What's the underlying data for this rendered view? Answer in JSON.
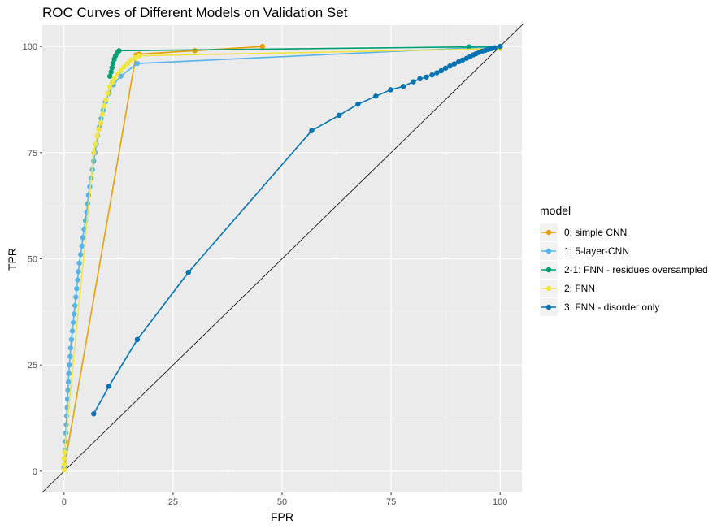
{
  "chart_data": {
    "type": "line",
    "title": "ROC Curves of Different Models on Validation Set",
    "xlabel": "FPR",
    "ylabel": "TPR",
    "xlim": [
      -5,
      105
    ],
    "ylim": [
      -5,
      105
    ],
    "x_ticks": [
      0,
      25,
      50,
      75,
      100
    ],
    "y_ticks": [
      0,
      25,
      50,
      75,
      100
    ],
    "grid": true,
    "reference_line": {
      "from": [
        -5,
        -5
      ],
      "to": [
        105,
        105
      ],
      "color": "#000000"
    },
    "legend": {
      "title": "model",
      "placement": "right"
    },
    "series": [
      {
        "name": "0: simple CNN",
        "color": "#E69F00",
        "points": [
          [
            0,
            0.5
          ],
          [
            16.5,
            98
          ],
          [
            17.2,
            98.2
          ],
          [
            30,
            99
          ],
          [
            45.5,
            100
          ]
        ]
      },
      {
        "name": "1: 5-layer-CNN",
        "color": "#56B4E9",
        "points": [
          [
            0,
            1
          ],
          [
            0.1,
            3
          ],
          [
            0.2,
            5
          ],
          [
            0.3,
            7
          ],
          [
            0.4,
            9
          ],
          [
            0.5,
            11
          ],
          [
            0.6,
            13
          ],
          [
            0.7,
            15
          ],
          [
            0.8,
            17
          ],
          [
            0.9,
            19
          ],
          [
            1.0,
            21
          ],
          [
            1.1,
            23
          ],
          [
            1.2,
            25
          ],
          [
            1.4,
            27
          ],
          [
            1.5,
            29
          ],
          [
            1.7,
            31
          ],
          [
            1.9,
            33
          ],
          [
            2.1,
            35
          ],
          [
            2.3,
            37
          ],
          [
            2.5,
            39
          ],
          [
            2.7,
            41
          ],
          [
            2.9,
            43
          ],
          [
            3.1,
            45
          ],
          [
            3.3,
            47
          ],
          [
            3.5,
            49
          ],
          [
            3.8,
            51
          ],
          [
            4.1,
            53
          ],
          [
            4.3,
            55
          ],
          [
            4.6,
            57
          ],
          [
            4.9,
            59
          ],
          [
            5.2,
            61
          ],
          [
            5.4,
            63
          ],
          [
            5.6,
            65
          ],
          [
            5.9,
            67
          ],
          [
            6.2,
            69
          ],
          [
            6.5,
            71
          ],
          [
            6.8,
            73
          ],
          [
            7.1,
            75
          ],
          [
            7.4,
            77
          ],
          [
            7.7,
            79
          ],
          [
            8.1,
            81
          ],
          [
            8.5,
            83
          ],
          [
            9.0,
            85
          ],
          [
            9.5,
            87
          ],
          [
            10.3,
            89
          ],
          [
            11.3,
            91
          ],
          [
            13.0,
            93
          ],
          [
            16.8,
            96
          ],
          [
            100,
            100
          ]
        ]
      },
      {
        "name": "2-1: FNN - residues oversampled",
        "color": "#009E73",
        "points": [
          [
            10.5,
            93
          ],
          [
            10.8,
            94
          ],
          [
            11.0,
            95
          ],
          [
            11.2,
            96
          ],
          [
            11.5,
            97
          ],
          [
            11.8,
            97.8
          ],
          [
            12.2,
            98.5
          ],
          [
            12.6,
            99
          ],
          [
            92.9,
            99.9
          ],
          [
            100,
            100
          ]
        ]
      },
      {
        "name": "2: FNN",
        "color": "#F0E442",
        "points": [
          [
            0,
            0.3
          ],
          [
            0,
            1.5
          ],
          [
            0,
            3
          ],
          [
            0.1,
            4.5
          ],
          [
            6.8,
            75
          ],
          [
            7.2,
            77
          ],
          [
            7.6,
            79
          ],
          [
            8.0,
            80.5
          ],
          [
            8.4,
            82
          ],
          [
            8.8,
            84
          ],
          [
            9.2,
            86
          ],
          [
            9.6,
            87.5
          ],
          [
            10.0,
            89
          ],
          [
            10.5,
            90.5
          ],
          [
            11.0,
            91.5
          ],
          [
            11.5,
            92.5
          ],
          [
            12.2,
            93.5
          ],
          [
            13.0,
            94.3
          ],
          [
            13.8,
            95.2
          ],
          [
            14.6,
            96
          ],
          [
            15.4,
            96.8
          ],
          [
            16.3,
            97.4
          ],
          [
            17.2,
            97.8
          ],
          [
            100,
            99.5
          ]
        ]
      },
      {
        "name": "3: FNN - disorder only",
        "color": "#0072B2",
        "points": [
          [
            6.8,
            13.5
          ],
          [
            10.3,
            20
          ],
          [
            16.8,
            31
          ],
          [
            28.5,
            46.8
          ],
          [
            56.8,
            80.2
          ],
          [
            63.1,
            83.8
          ],
          [
            67.4,
            86.4
          ],
          [
            71.5,
            88.3
          ],
          [
            74.9,
            89.8
          ],
          [
            77.8,
            90.6
          ],
          [
            80.1,
            91.7
          ],
          [
            81.6,
            92.4
          ],
          [
            83.1,
            92.8
          ],
          [
            84.4,
            93.3
          ],
          [
            85.5,
            93.8
          ],
          [
            86.5,
            94.3
          ],
          [
            87.5,
            94.9
          ],
          [
            88.5,
            95.4
          ],
          [
            89.5,
            95.9
          ],
          [
            90.5,
            96.4
          ],
          [
            91.4,
            96.8
          ],
          [
            92.3,
            97.2
          ],
          [
            93.1,
            97.6
          ],
          [
            93.8,
            98
          ],
          [
            94.5,
            98.3
          ],
          [
            95.2,
            98.6
          ],
          [
            95.9,
            98.9
          ],
          [
            96.6,
            99.1
          ],
          [
            97.3,
            99.3
          ],
          [
            98.0,
            99.5
          ],
          [
            98.8,
            99.7
          ],
          [
            100,
            100
          ]
        ]
      }
    ]
  }
}
